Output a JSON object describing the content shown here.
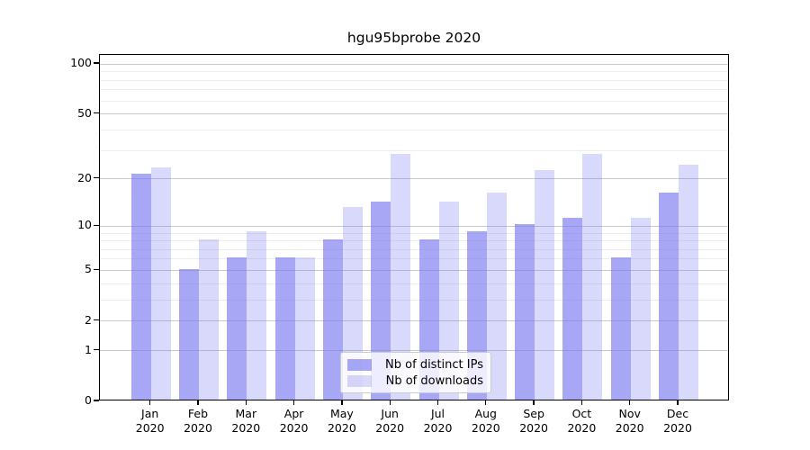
{
  "chart_data": {
    "type": "bar",
    "title": "hgu95bprobe 2020",
    "categories": [
      "Jan",
      "Feb",
      "Mar",
      "Apr",
      "May",
      "Jun",
      "Jul",
      "Aug",
      "Sep",
      "Oct",
      "Nov",
      "Dec"
    ],
    "category_year": "2020",
    "series": [
      {
        "name": "Nb of distinct IPs",
        "values": [
          21,
          5,
          6,
          6,
          8,
          14,
          8,
          9,
          10,
          11,
          6,
          16
        ]
      },
      {
        "name": "Nb of downloads",
        "values": [
          23,
          8,
          9,
          6,
          13,
          28,
          14,
          16,
          22,
          28,
          11,
          24
        ]
      }
    ],
    "xlabel": "",
    "ylabel": "",
    "ylim": [
      0,
      100
    ],
    "yscale": "log10(value+1)",
    "y_ticks": [
      0,
      1,
      2,
      5,
      10,
      20,
      50,
      100
    ],
    "grid_major": [
      1,
      2,
      5,
      10,
      20,
      50,
      100
    ],
    "grid_minor": [
      3,
      4,
      6,
      7,
      8,
      9,
      30,
      40,
      60,
      70,
      80,
      90
    ],
    "grid_on": true,
    "legend_position": "lower center",
    "colors": {
      "bar_ips": "rgba(120,120,240,0.65)",
      "bar_downloads": "rgba(120,120,240,0.28)",
      "grid_major": "#c9c9c9",
      "grid_minor": "#ececec",
      "axis": "#000000",
      "background": "#ffffff"
    }
  }
}
